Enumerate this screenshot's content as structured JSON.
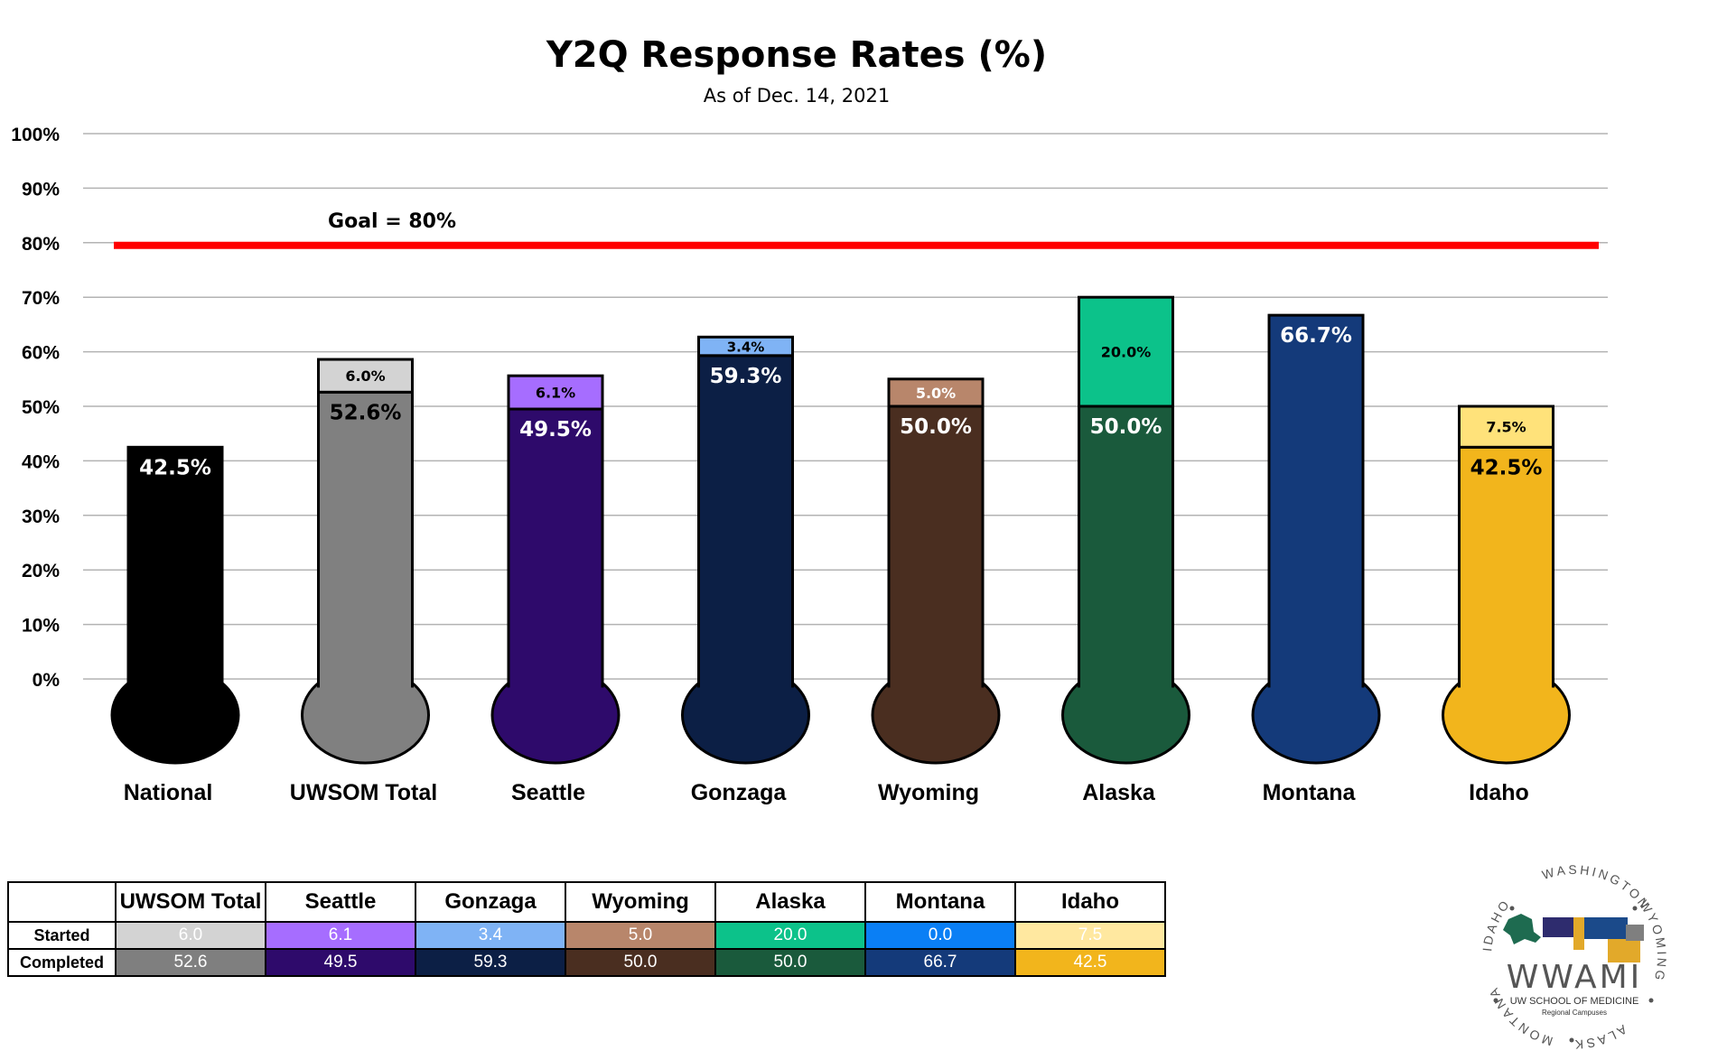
{
  "chart_data": {
    "type": "bar",
    "title": "Y2Q Response Rates (%)",
    "subtitle": "As of Dec. 14, 2021",
    "ylim": [
      0,
      100
    ],
    "yticks": [
      "0%",
      "10%",
      "20%",
      "30%",
      "40%",
      "50%",
      "60%",
      "70%",
      "80%",
      "90%",
      "100%"
    ],
    "grid": true,
    "stacked": true,
    "goal": {
      "value": 80,
      "label": "Goal = 80%",
      "color": "#ff0000"
    },
    "categories": [
      "National",
      "UWSOM Total",
      "Seattle",
      "Gonzaga",
      "Wyoming",
      "Alaska",
      "Montana",
      "Idaho"
    ],
    "series": [
      {
        "values": [
          42.5,
          52.6,
          49.5,
          59.3,
          50.0,
          50.0,
          66.7,
          42.5
        ],
        "labels": [
          "42.5%",
          "52.6%",
          "49.5%",
          "59.3%",
          "50.0%",
          "50.0%",
          "66.7%",
          "42.5%"
        ],
        "colors": [
          "#000000",
          "#808080",
          "#2e0a6b",
          "#0c1f45",
          "#4a2e20",
          "#1a5a3c",
          "#143a7a",
          "#f2b51c"
        ],
        "label_colors": [
          "#ffffff",
          "#000000",
          "#ffffff",
          "#ffffff",
          "#ffffff",
          "#ffffff",
          "#ffffff",
          "#000000"
        ]
      },
      {
        "values": [
          0,
          6.0,
          6.1,
          3.4,
          5.0,
          20.0,
          0,
          7.5
        ],
        "labels": [
          "",
          "6.0%",
          "6.1%",
          "3.4%",
          "5.0%",
          "20.0%",
          "",
          "7.5%"
        ],
        "colors": [
          "#000000",
          "#d3d3d3",
          "#a66dff",
          "#7fb3f5",
          "#b8866b",
          "#0cc28a",
          "#143a7a",
          "#ffe27a"
        ],
        "label_colors": [
          "#000000",
          "#000000",
          "#000000",
          "#000000",
          "#ffffff",
          "#000000",
          "#000000",
          "#000000"
        ]
      }
    ]
  },
  "table": {
    "columns": [
      "UWSOM Total",
      "Seattle",
      "Gonzaga",
      "Wyoming",
      "Alaska",
      "Montana",
      "Idaho"
    ],
    "rows": [
      {
        "label": "Started",
        "values": [
          "6.0",
          "6.1",
          "3.4",
          "5.0",
          "20.0",
          "0.0",
          "7.5"
        ],
        "colors": [
          "#d3d3d3",
          "#a66dff",
          "#7fb3f5",
          "#b8866b",
          "#0cc28a",
          "#0a7ff5",
          "#ffe8a0"
        ],
        "text_colors": [
          "#ffffff",
          "#ffffff",
          "#ffffff",
          "#ffffff",
          "#ffffff",
          "#ffffff",
          "#ffffff"
        ]
      },
      {
        "label": "Completed",
        "values": [
          "52.6",
          "49.5",
          "59.3",
          "50.0",
          "50.0",
          "66.7",
          "42.5"
        ],
        "colors": [
          "#7f7f7f",
          "#2e0a6b",
          "#0c1f45",
          "#4a2e20",
          "#1a5a3c",
          "#143a7a",
          "#f2b51c"
        ],
        "text_colors": [
          "#ffffff",
          "#ffffff",
          "#ffffff",
          "#ffffff",
          "#ffffff",
          "#ffffff",
          "#ffffff"
        ]
      }
    ]
  },
  "logo": {
    "name": "WWAMI",
    "line1": "UW SCHOOL OF MEDICINE",
    "line2": "Regional Campuses",
    "ring": [
      "WASHINGTON",
      "WYOMING",
      "ALASKA",
      "MONTANA",
      "IDAHO"
    ],
    "colors": {
      "alaska": "#1e6b50",
      "washington": "#2e2c6e",
      "montana": "#1b4a8a",
      "idaho": "#e2a92a",
      "wyoming": "#e2a92a",
      "gray": "#7f7f7f"
    }
  }
}
